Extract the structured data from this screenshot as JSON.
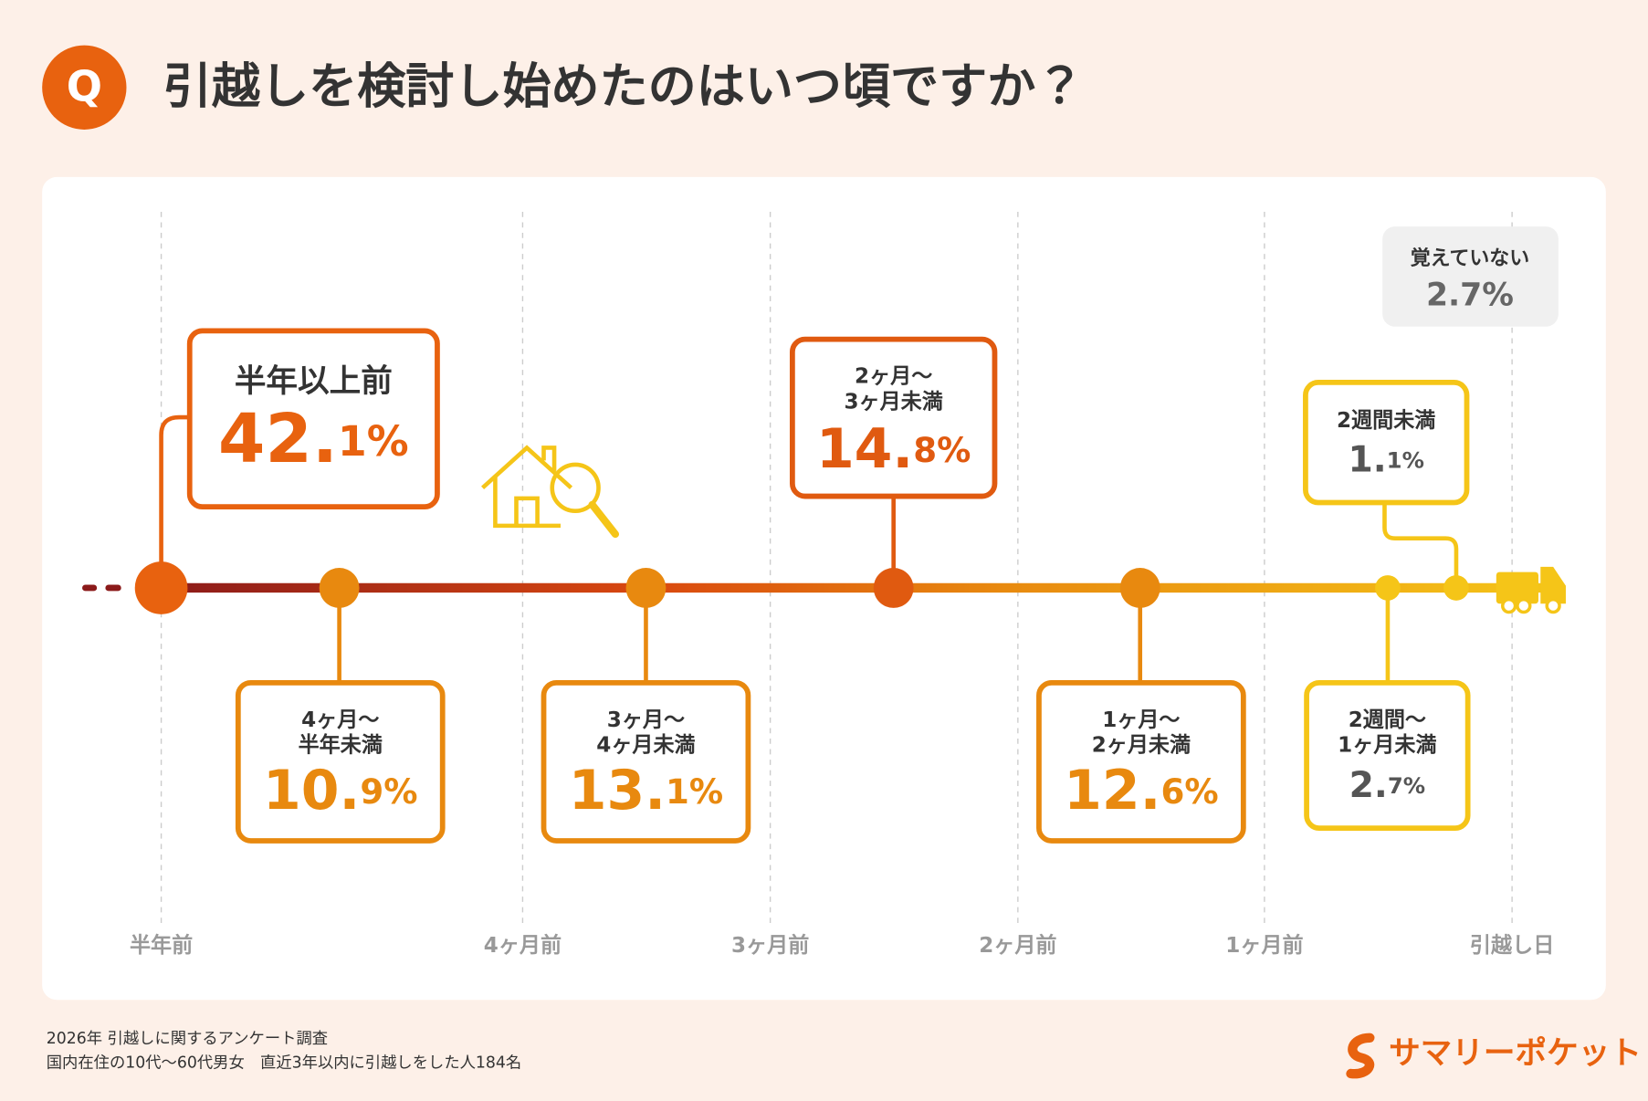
{
  "header": {
    "badge": "Q",
    "title": "引越しを検討し始めたのはいつ頃ですか？"
  },
  "axis_labels": [
    "半年前",
    "4ヶ月前",
    "3ヶ月前",
    "2ヶ月前",
    "1ヶ月前",
    "引越し日"
  ],
  "items": [
    {
      "label": [
        "半年以上前"
      ],
      "value": "42.1%"
    },
    {
      "label": [
        "4ヶ月〜",
        "半年未満"
      ],
      "value": "10.9%"
    },
    {
      "label": [
        "3ヶ月〜",
        "4ヶ月未満"
      ],
      "value": "13.1%"
    },
    {
      "label": [
        "2ヶ月〜",
        "3ヶ月未満"
      ],
      "value": "14.8%"
    },
    {
      "label": [
        "1ヶ月〜",
        "2ヶ月未満"
      ],
      "value": "12.6%"
    },
    {
      "label": [
        "2週間未満"
      ],
      "value": "1.1%"
    },
    {
      "label": [
        "2週間〜",
        "1ヶ月未満"
      ],
      "value": "2.7%"
    }
  ],
  "unknown": {
    "label": "覚えていない",
    "value": "2.7%"
  },
  "footer": {
    "lines": [
      "2026年  引越しに関するアンケート調査",
      "国内在住の10代〜60代男女　直近3年以内に引越しをした人184名"
    ],
    "logo": "サマリーポケット"
  }
}
